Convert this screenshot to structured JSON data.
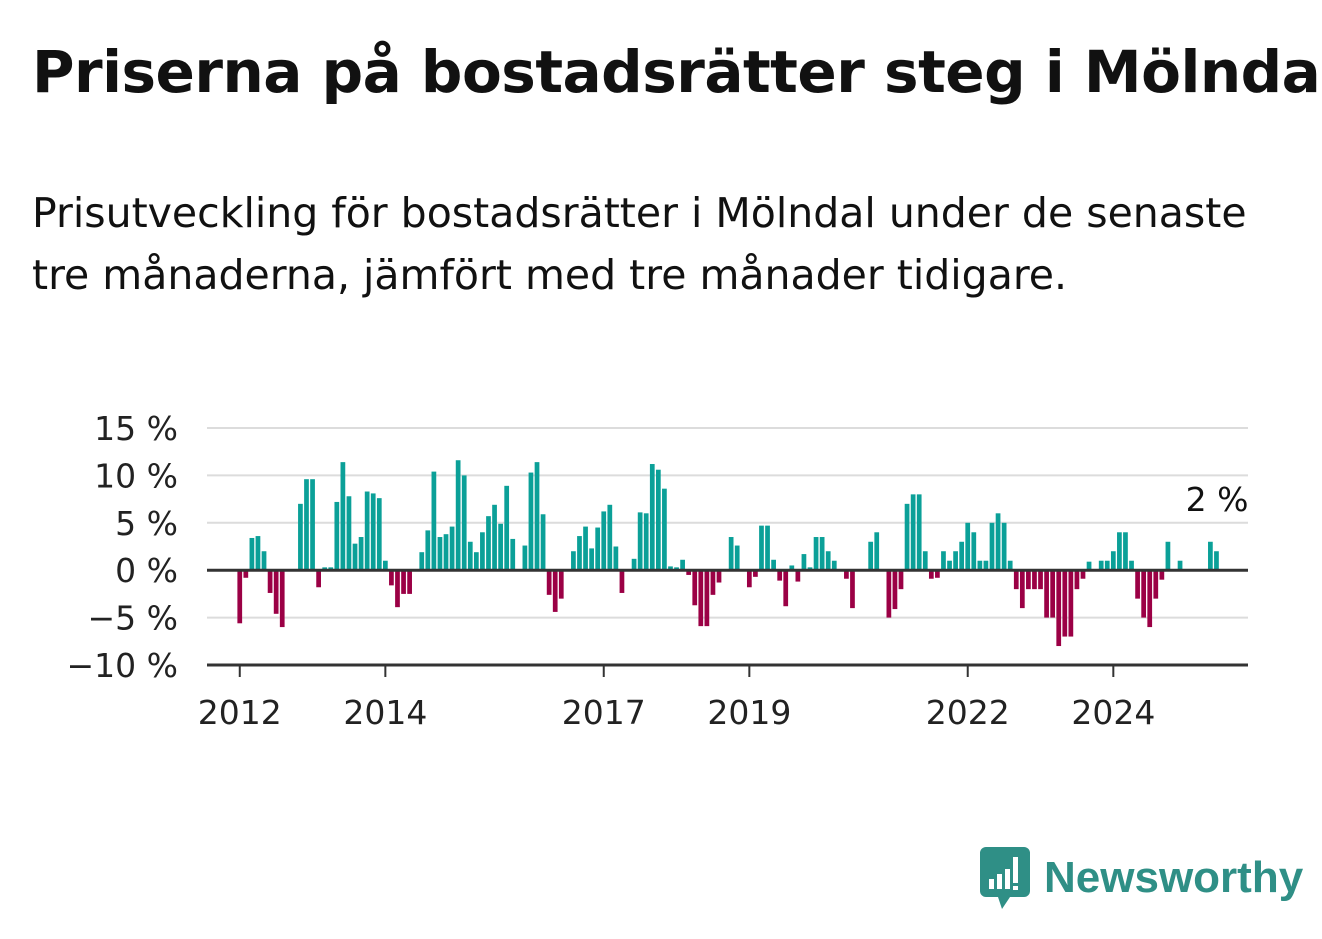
{
  "title": "Priserna på bostadsrätter steg i Mölndal",
  "subtitle": "Prisutveckling för bostadsrätter i Mölndal under de senaste tre månaderna, jämfört med tre månader tidigare.",
  "brand": {
    "name": "Newsworthy",
    "icon": "newsworthy-logo-icon",
    "color": "#2f8f86"
  },
  "colors": {
    "positive": "#0ba098",
    "negative": "#9b0045",
    "grid": "#dcdcdc",
    "axis": "#333333"
  },
  "chart_data": {
    "type": "bar",
    "title": "",
    "xlabel": "",
    "ylabel": "",
    "ylim": [
      -10,
      15
    ],
    "y_ticks": [
      15,
      10,
      5,
      0,
      -5,
      -10
    ],
    "y_tick_labels": [
      "15 %",
      "10 %",
      "5 %",
      "0 %",
      "−5 %",
      "−10 %"
    ],
    "x_ticks": [
      "2012",
      "2014",
      "2017",
      "2019",
      "2022",
      "2024"
    ],
    "x_tick_values": [
      2012,
      2014,
      2017,
      2019,
      2022,
      2024
    ],
    "last_value_label": "2 %",
    "grid": true,
    "legend": "none",
    "series": [
      {
        "values": [
          -5.6,
          -0.8,
          3.4,
          3.6,
          2.0,
          -2.4,
          -4.6,
          -6.0,
          0,
          0,
          7.0,
          9.6,
          9.6,
          -1.8,
          0.3,
          0.3,
          7.2,
          11.4,
          7.8,
          2.8,
          3.5,
          8.3,
          8.1,
          7.6,
          1.0,
          -1.6,
          -3.9,
          -2.5,
          -2.5,
          0,
          1.9,
          4.2,
          10.4,
          3.5,
          3.8,
          4.6,
          11.6,
          10.0,
          3.0,
          1.9,
          4.0,
          5.7,
          6.9,
          4.9,
          8.9,
          3.3,
          0,
          2.6,
          10.3,
          11.4,
          5.9,
          -2.6,
          -4.4,
          -3.0,
          0,
          2.0,
          3.6,
          4.6,
          2.3,
          4.5,
          6.2,
          6.9,
          2.5,
          -2.4,
          0,
          1.2,
          6.1,
          6.0,
          11.2,
          10.6,
          8.6,
          0.4,
          0.3,
          1.1,
          -0.5,
          -3.7,
          -5.9,
          -5.9,
          -2.6,
          -1.3,
          0,
          3.5,
          2.6,
          0,
          -1.8,
          -0.7,
          4.7,
          4.7,
          1.1,
          -1.1,
          -3.8,
          0.5,
          -1.2,
          1.7,
          0.3,
          3.5,
          3.5,
          2.0,
          1.0,
          0,
          -0.9,
          -4.0,
          0,
          0,
          3.0,
          4.0,
          0,
          -5.0,
          -4.1,
          -2.0,
          7.0,
          8.0,
          8.0,
          2.0,
          -0.9,
          -0.8,
          2.0,
          1.0,
          2.0,
          3.0,
          5.0,
          4.0,
          1.0,
          1.0,
          5.0,
          6.0,
          5.0,
          1.0,
          -2.0,
          -4.0,
          -2.0,
          -2.0,
          -2.0,
          -5.0,
          -5.0,
          -8.0,
          -7.0,
          -7.0,
          -2.0,
          -0.9,
          0.9,
          0,
          1.0,
          1.0,
          2.0,
          4.0,
          4.0,
          1.0,
          -3.0,
          -5.0,
          -6.0,
          -3.0,
          -1.0,
          3.0,
          0,
          1.0,
          0,
          0,
          0,
          0,
          3.0,
          2.0
        ]
      }
    ]
  }
}
